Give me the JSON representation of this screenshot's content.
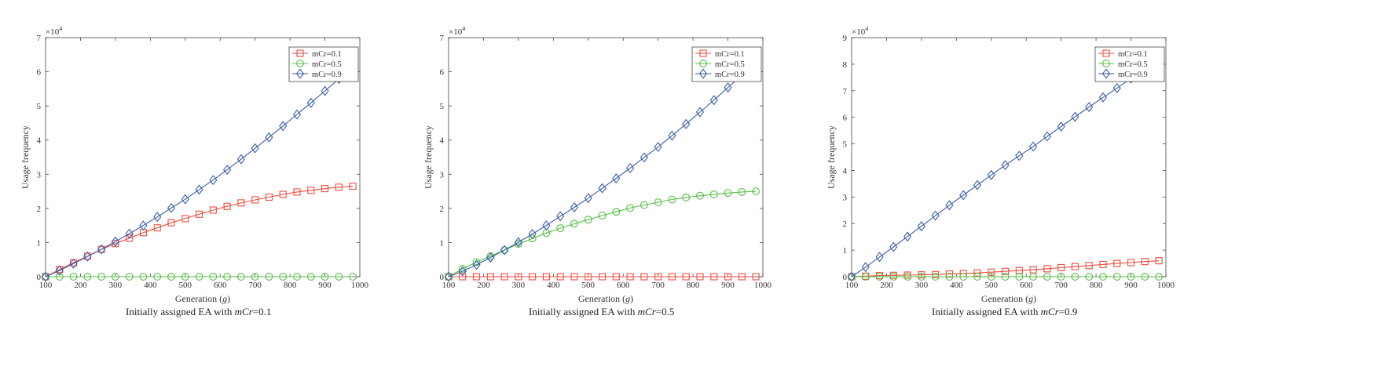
{
  "figure": {
    "xlabel_prefix": "Generation (",
    "xlabel_var": "g",
    "xlabel_suffix": ")",
    "ylabel": "Usage frequency",
    "multiplier": "×10",
    "exponent": "4",
    "caption_prefix": "Initially assigned EA with ",
    "caption_var": "mCr",
    "legend_labels": [
      "mCr=0.1",
      "mCr=0.5",
      "mCr=0.9"
    ],
    "colors": {
      "mCr=0.1": "#ef4d3f",
      "mCr=0.5": "#55c043",
      "mCr=0.9": "#3b5ea8"
    },
    "markers": {
      "mCr=0.1": "square",
      "mCr=0.5": "circle",
      "mCr=0.9": "diamond"
    }
  },
  "chart_data": [
    {
      "type": "line",
      "caption_value": "=0.1",
      "xlabel": "Generation (g)",
      "ylabel": "Usage frequency",
      "ylim": [
        0,
        70000
      ],
      "xlim": [
        100,
        1000
      ],
      "xticks": [
        100,
        200,
        300,
        400,
        500,
        600,
        700,
        800,
        900,
        1000
      ],
      "yticks": [
        0,
        1,
        2,
        3,
        4,
        5,
        6,
        7
      ],
      "y_scale_label": "×10^4",
      "legend_position": "top-right",
      "x": [
        100,
        140,
        180,
        220,
        260,
        300,
        340,
        380,
        420,
        460,
        500,
        540,
        580,
        620,
        660,
        700,
        740,
        780,
        820,
        860,
        900,
        940,
        980
      ],
      "series": [
        {
          "name": "mCr=0.1",
          "values": [
            0,
            2100,
            4100,
            6000,
            8000,
            9700,
            11300,
            12900,
            14300,
            15800,
            17000,
            18300,
            19500,
            20600,
            21600,
            22500,
            23300,
            24100,
            24800,
            25300,
            25800,
            26200,
            26500
          ]
        },
        {
          "name": "mCr=0.5",
          "values": [
            0,
            0,
            0,
            0,
            0,
            0,
            0,
            0,
            0,
            0,
            0,
            0,
            0,
            0,
            0,
            0,
            0,
            0,
            0,
            0,
            0,
            0,
            0
          ]
        },
        {
          "name": "mCr=0.9",
          "values": [
            0,
            1800,
            3800,
            5900,
            8000,
            10300,
            12600,
            15000,
            17500,
            20100,
            22700,
            25500,
            28300,
            31300,
            34400,
            37600,
            40800,
            44100,
            47500,
            50900,
            54400,
            57900,
            61500
          ]
        }
      ]
    },
    {
      "type": "line",
      "caption_value": "=0.5",
      "xlabel": "Generation (g)",
      "ylabel": "Usage frequency",
      "ylim": [
        0,
        70000
      ],
      "xlim": [
        100,
        1000
      ],
      "xticks": [
        100,
        200,
        300,
        400,
        500,
        600,
        700,
        800,
        900,
        1000
      ],
      "yticks": [
        0,
        1,
        2,
        3,
        4,
        5,
        6,
        7
      ],
      "y_scale_label": "×10^4",
      "legend_position": "top-right",
      "x": [
        100,
        140,
        180,
        220,
        260,
        300,
        340,
        380,
        420,
        460,
        500,
        540,
        580,
        620,
        660,
        700,
        740,
        780,
        820,
        860,
        900,
        940,
        980
      ],
      "series": [
        {
          "name": "mCr=0.1",
          "values": [
            0,
            0,
            0,
            0,
            0,
            0,
            0,
            0,
            0,
            0,
            0,
            0,
            0,
            0,
            0,
            0,
            0,
            0,
            0,
            0,
            0,
            0,
            0
          ]
        },
        {
          "name": "mCr=0.5",
          "values": [
            0,
            2300,
            4300,
            6000,
            7800,
            9600,
            11200,
            12800,
            14200,
            15500,
            16700,
            17900,
            19000,
            20100,
            21000,
            21800,
            22600,
            23200,
            23700,
            24100,
            24500,
            24800,
            25000
          ]
        },
        {
          "name": "mCr=0.9",
          "values": [
            0,
            1600,
            3500,
            5600,
            7800,
            10100,
            12500,
            15000,
            17700,
            20300,
            23000,
            25900,
            28800,
            31800,
            34900,
            38000,
            41300,
            44700,
            48200,
            51700,
            55400,
            59100,
            62900
          ]
        }
      ]
    },
    {
      "type": "line",
      "caption_value": "=0.9",
      "xlabel": "Generation (g)",
      "ylabel": "Usage frequency",
      "ylim": [
        0,
        90000
      ],
      "xlim": [
        100,
        1000
      ],
      "xticks": [
        100,
        200,
        300,
        400,
        500,
        600,
        700,
        800,
        900,
        1000
      ],
      "yticks": [
        0,
        1,
        2,
        3,
        4,
        5,
        6,
        7,
        8,
        9
      ],
      "y_scale_label": "×10^4",
      "legend_position": "top-right",
      "x": [
        100,
        140,
        180,
        220,
        260,
        300,
        340,
        380,
        420,
        460,
        500,
        540,
        580,
        620,
        660,
        700,
        740,
        780,
        820,
        860,
        900,
        940,
        980
      ],
      "series": [
        {
          "name": "mCr=0.1",
          "values": [
            0,
            200,
            400,
            500,
            600,
            700,
            800,
            1000,
            1200,
            1400,
            1700,
            2000,
            2300,
            2600,
            3000,
            3400,
            3800,
            4200,
            4600,
            5000,
            5300,
            5700,
            6000
          ]
        },
        {
          "name": "mCr=0.5",
          "values": [
            0,
            0,
            0,
            0,
            0,
            0,
            0,
            0,
            0,
            0,
            0,
            0,
            0,
            0,
            0,
            0,
            0,
            0,
            0,
            0,
            0,
            0,
            0
          ]
        },
        {
          "name": "mCr=0.9",
          "values": [
            0,
            3600,
            7400,
            11200,
            15100,
            19000,
            23000,
            26900,
            30700,
            34500,
            38300,
            42000,
            45500,
            49000,
            52800,
            56500,
            60200,
            63900,
            67500,
            71000,
            74600,
            78300,
            82000
          ]
        }
      ]
    }
  ]
}
